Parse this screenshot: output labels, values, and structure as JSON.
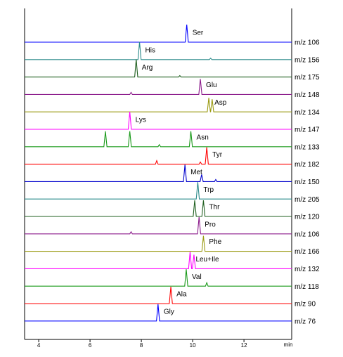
{
  "chart_data": {
    "type": "stacked-chromatogram",
    "x_label": "min",
    "xlim": [
      3.45,
      13.86
    ],
    "xticks": [
      4,
      6,
      8,
      10,
      12
    ],
    "series": [
      {
        "name": "Ser",
        "mz": "m/z 106",
        "color": "#0000ff",
        "x": [
          3.45,
          9.71,
          9.77,
          9.83,
          13.86
        ],
        "values": [
          0,
          0,
          25,
          0,
          0
        ]
      },
      {
        "name": "His",
        "mz": "m/z 156",
        "color": "#2a8a8a",
        "x": [
          3.45,
          7.87,
          7.93,
          7.99,
          10.65,
          10.7,
          10.75,
          13.86
        ],
        "values": [
          0,
          0,
          25,
          0,
          0,
          2,
          0,
          0
        ]
      },
      {
        "name": "Arg",
        "mz": "m/z 175",
        "color": "#1f5f1f",
        "x": [
          3.45,
          7.74,
          7.8,
          7.86,
          9.45,
          9.5,
          9.55,
          13.86
        ],
        "values": [
          0,
          0,
          25,
          0,
          0,
          2,
          0,
          0
        ]
      },
      {
        "name": "Glu",
        "mz": "m/z 148",
        "color": "#8b1a8b",
        "x": [
          3.45,
          7.55,
          7.6,
          7.65,
          10.24,
          10.3,
          10.36,
          13.86
        ],
        "values": [
          0,
          0,
          3,
          0,
          0,
          22,
          0,
          0
        ]
      },
      {
        "name": "Asp",
        "mz": "m/z 134",
        "color": "#9a9a10",
        "x": [
          3.45,
          10.57,
          10.63,
          10.69,
          10.7,
          10.76,
          10.82,
          13.86
        ],
        "values": [
          0,
          0,
          20,
          0,
          0,
          18,
          0,
          0
        ]
      },
      {
        "name": "Lys",
        "mz": "m/z 147",
        "color": "#ff00ff",
        "x": [
          3.45,
          7.49,
          7.55,
          7.61,
          13.86
        ],
        "values": [
          0,
          0,
          25,
          0,
          0
        ]
      },
      {
        "name": "Asn",
        "mz": "m/z 133",
        "color": "#1a9a1a",
        "x": [
          3.45,
          6.54,
          6.6,
          6.66,
          7.49,
          7.55,
          7.61,
          8.65,
          8.7,
          8.75,
          9.87,
          9.93,
          9.99,
          13.86
        ],
        "values": [
          0,
          0,
          22,
          0,
          0,
          22,
          0,
          0,
          3,
          0,
          0,
          22,
          0,
          0
        ]
      },
      {
        "name": "Tyr",
        "mz": "m/z 182",
        "color": "#ff0000",
        "x": [
          3.45,
          8.55,
          8.6,
          8.65,
          10.25,
          10.3,
          10.35,
          10.49,
          10.55,
          10.61,
          13.86
        ],
        "values": [
          0,
          0,
          5,
          0,
          0,
          3,
          0,
          0,
          24,
          0,
          0
        ]
      },
      {
        "name": "Met",
        "mz": "m/z 150",
        "color": "#0000cc",
        "x": [
          3.45,
          9.64,
          9.7,
          9.76,
          10.29,
          10.35,
          10.41,
          10.85,
          10.9,
          10.95,
          13.86
        ],
        "values": [
          0,
          0,
          24,
          0,
          0,
          10,
          0,
          0,
          3,
          0,
          0
        ]
      },
      {
        "name": "Trp",
        "mz": "m/z 205",
        "color": "#2a8a8a",
        "x": [
          3.45,
          10.14,
          10.2,
          10.26,
          13.86
        ],
        "values": [
          0,
          0,
          24,
          0,
          0
        ]
      },
      {
        "name": "Thr",
        "mz": "m/z 120",
        "color": "#1f5f1f",
        "x": [
          3.45,
          10.02,
          10.08,
          10.14,
          10.36,
          10.42,
          10.48,
          13.86
        ],
        "values": [
          0,
          0,
          23,
          0,
          0,
          23,
          0,
          0
        ]
      },
      {
        "name": "Pro",
        "mz": "m/z 106",
        "color": "#8b1a8b",
        "x": [
          3.45,
          7.55,
          7.6,
          7.65,
          10.19,
          10.25,
          10.31,
          13.86
        ],
        "values": [
          0,
          0,
          3,
          0,
          0,
          24,
          0,
          0
        ]
      },
      {
        "name": "Phe",
        "mz": "m/z 166",
        "color": "#9a9a10",
        "x": [
          3.45,
          10.36,
          10.42,
          10.48,
          13.86
        ],
        "values": [
          0,
          0,
          22,
          0,
          0
        ]
      },
      {
        "name": "Leu+Ile",
        "mz": "m/z 132",
        "color": "#ff00ff",
        "x": [
          3.45,
          9.84,
          9.9,
          9.96,
          9.99,
          10.05,
          10.11,
          13.86
        ],
        "values": [
          0,
          0,
          24,
          0,
          0,
          20,
          0,
          0
        ]
      },
      {
        "name": "Val",
        "mz": "m/z 118",
        "color": "#1a9a1a",
        "x": [
          3.45,
          9.69,
          9.75,
          9.81,
          10.5,
          10.55,
          10.6,
          13.86
        ],
        "values": [
          0,
          0,
          24,
          0,
          0,
          5,
          0,
          0
        ]
      },
      {
        "name": "Ala",
        "mz": "m/z 90",
        "color": "#ff0000",
        "x": [
          3.45,
          9.09,
          9.15,
          9.21,
          13.86
        ],
        "values": [
          0,
          0,
          24,
          0,
          0
        ]
      },
      {
        "name": "Gly",
        "mz": "m/z 76",
        "color": "#0000ff",
        "x": [
          3.45,
          8.59,
          8.65,
          8.71,
          13.86
        ],
        "values": [
          0,
          0,
          24,
          0,
          0
        ]
      }
    ]
  }
}
